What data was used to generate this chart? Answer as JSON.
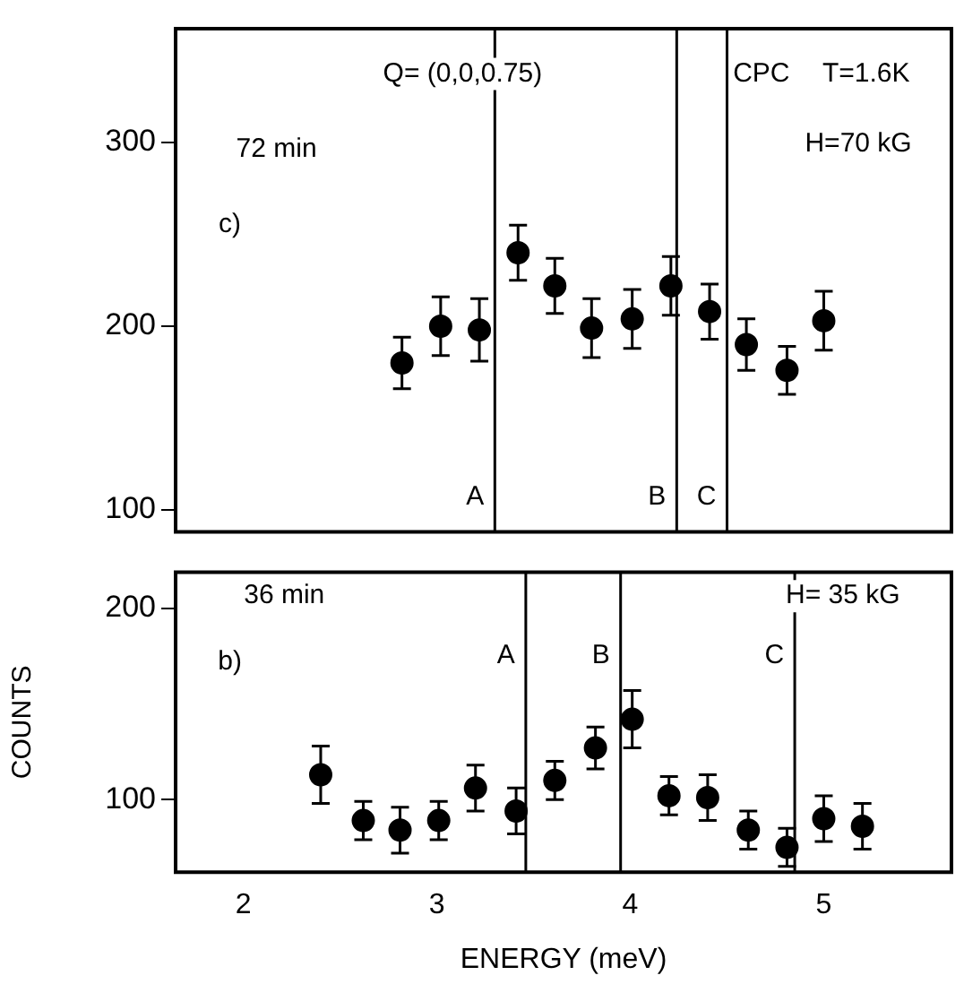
{
  "chart_data": [
    {
      "type": "scatter",
      "color": "#000000",
      "marker": "circle",
      "tick_labels": "y",
      "x": [
        2.82,
        3.02,
        3.22,
        3.42,
        3.61,
        3.8,
        4.01,
        4.21,
        4.41,
        4.6,
        4.81,
        5.0
      ],
      "values": [
        180,
        200,
        198,
        240,
        222,
        199,
        204,
        222,
        208,
        190,
        176,
        203
      ],
      "errors": [
        14,
        16,
        17,
        15,
        15,
        16,
        16,
        16,
        15,
        14,
        13,
        16
      ],
      "xlim": [
        1.65,
        5.66
      ],
      "ylim": [
        88,
        362
      ],
      "xticks": [
        2,
        3,
        4,
        5
      ],
      "yticks": [
        100,
        200,
        300
      ],
      "ref_lines": [
        {
          "axis": "x",
          "value": 3.3,
          "label": "A"
        },
        {
          "axis": "x",
          "value": 4.24,
          "label": "B"
        },
        {
          "axis": "x",
          "value": 4.5,
          "label": "C"
        }
      ],
      "annotations": [
        "Q= (0,0,0.75)",
        "CPC",
        "T=1.6K",
        "72 min",
        "H=70 kG",
        "c)"
      ]
    },
    {
      "type": "scatter",
      "color": "#000000",
      "marker": "circle",
      "xlabel": "ENERGY (meV)",
      "ylabel": "COUNTS",
      "x": [
        2.4,
        2.62,
        2.81,
        3.01,
        3.2,
        3.41,
        3.61,
        3.82,
        4.01,
        4.2,
        4.4,
        4.61,
        4.81,
        5.0,
        5.2
      ],
      "values": [
        113,
        89,
        84,
        89,
        106,
        94,
        110,
        127,
        142,
        102,
        101,
        84,
        75,
        90,
        86
      ],
      "errors": [
        15,
        10,
        12,
        10,
        12,
        12,
        10,
        11,
        15,
        10,
        12,
        10,
        10,
        12,
        12
      ],
      "xlim": [
        1.65,
        5.66
      ],
      "ylim": [
        62,
        219
      ],
      "xticks": [
        2,
        3,
        4,
        5
      ],
      "yticks": [
        100,
        200
      ],
      "ref_lines": [
        {
          "axis": "x",
          "value": 3.46,
          "label": "A"
        },
        {
          "axis": "x",
          "value": 3.95,
          "label": "B"
        },
        {
          "axis": "x",
          "value": 4.85,
          "label": "C"
        }
      ],
      "annotations": [
        "36 min",
        "H= 35 kG",
        "b)"
      ]
    }
  ]
}
